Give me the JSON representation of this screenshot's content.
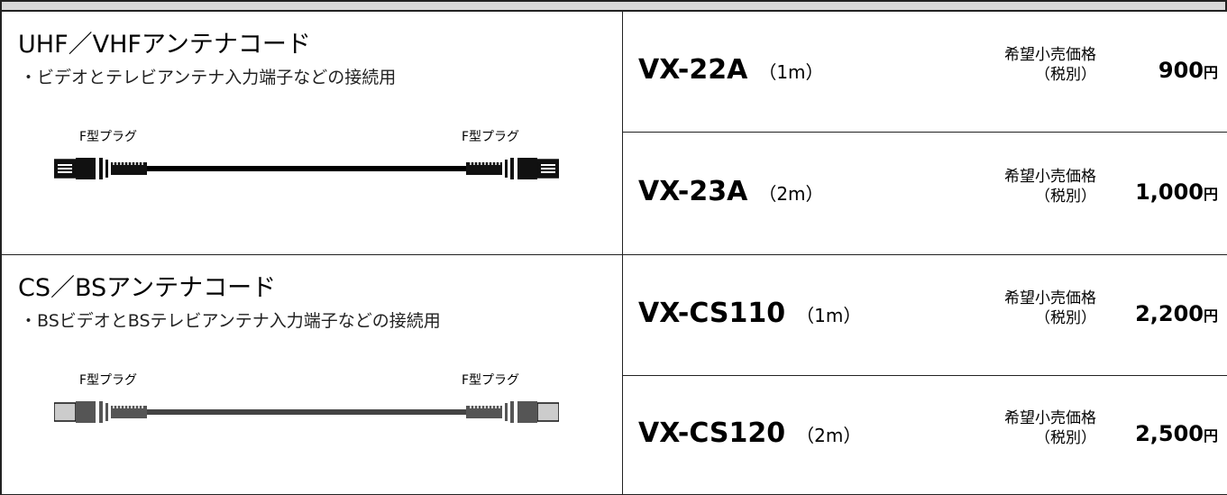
{
  "sections": [
    {
      "title": "UHF／VHFアンテナコード",
      "description": "・ビデオとテレビアンテナ入力端子などの接続用",
      "plug_left": "F型プラグ",
      "plug_right": "F型プラグ",
      "products": [
        {
          "model": "VX-22A",
          "length": "（1m）",
          "price_label": "希望小売価格",
          "tax_note": "（税別）",
          "price": "900",
          "unit": "円"
        },
        {
          "model": "VX-23A",
          "length": "（2m）",
          "price_label": "希望小売価格",
          "tax_note": "（税別）",
          "price": "1,000",
          "unit": "円"
        }
      ]
    },
    {
      "title": "CS／BSアンテナコード",
      "description": "・BSビデオとBSテレビアンテナ入力端子などの接続用",
      "plug_left": "F型プラグ",
      "plug_right": "F型プラグ",
      "products": [
        {
          "model": "VX-CS110",
          "length": "（1m）",
          "price_label": "希望小売価格",
          "tax_note": "（税別）",
          "price": "2,200",
          "unit": "円"
        },
        {
          "model": "VX-CS120",
          "length": "（2m）",
          "price_label": "希望小売価格",
          "tax_note": "（税別）",
          "price": "2,500",
          "unit": "円"
        }
      ]
    }
  ]
}
